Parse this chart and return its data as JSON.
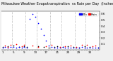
{
  "title": "Milwaukee Weather Evapotranspiration  vs Rain per Day  (Inches)",
  "legend_labels": [
    "ETo",
    "Rain"
  ],
  "legend_colors": [
    "#0000ff",
    "#ff0000"
  ],
  "background_color": "#f0f0f0",
  "plot_bg": "#ffffff",
  "xlim": [
    0.5,
    36.5
  ],
  "ylim": [
    0,
    0.65
  ],
  "yticks": [
    0.1,
    0.2,
    0.3,
    0.4,
    0.5,
    0.6
  ],
  "vline_x": [
    4.5,
    9.5,
    13.5,
    18.5,
    22.5,
    27.5,
    31.5
  ],
  "eto_x": [
    1,
    2,
    3,
    4,
    5,
    6,
    7,
    8,
    9,
    10,
    11,
    12,
    13,
    14,
    15,
    16,
    17,
    18,
    19,
    20,
    21,
    22,
    23,
    24,
    25,
    26,
    27,
    28,
    29,
    30,
    31,
    32,
    33,
    34,
    35,
    36
  ],
  "eto_y": [
    0.04,
    0.05,
    0.04,
    0.05,
    0.05,
    0.04,
    0.05,
    0.04,
    0.05,
    0.04,
    0.52,
    0.6,
    0.55,
    0.45,
    0.35,
    0.25,
    0.15,
    0.07,
    0.05,
    0.04,
    0.04,
    0.04,
    0.05,
    0.04,
    0.04,
    0.04,
    0.04,
    0.04,
    0.04,
    0.05,
    0.04,
    0.04,
    0.04,
    0.04,
    0.04,
    0.04
  ],
  "rain_x": [
    2,
    3,
    4,
    6,
    8,
    9,
    12,
    14,
    17,
    19,
    22,
    24,
    26,
    28,
    30,
    32,
    34,
    35
  ],
  "rain_y": [
    0.07,
    0.05,
    0.09,
    0.1,
    0.06,
    0.08,
    0.07,
    0.05,
    0.06,
    0.08,
    0.05,
    0.06,
    0.07,
    0.05,
    0.09,
    0.08,
    0.06,
    0.07
  ],
  "black_x": [
    1,
    3,
    5,
    7,
    9,
    10,
    14,
    16,
    18,
    20,
    21,
    23,
    25,
    27,
    29,
    31,
    33,
    36
  ],
  "black_y": [
    0.05,
    0.06,
    0.07,
    0.05,
    0.06,
    0.05,
    0.06,
    0.05,
    0.04,
    0.05,
    0.06,
    0.05,
    0.06,
    0.05,
    0.04,
    0.06,
    0.05,
    0.04
  ],
  "title_fontsize": 3.5,
  "tick_fontsize": 3.0,
  "legend_fontsize": 3.0,
  "marker_size": 1.5
}
